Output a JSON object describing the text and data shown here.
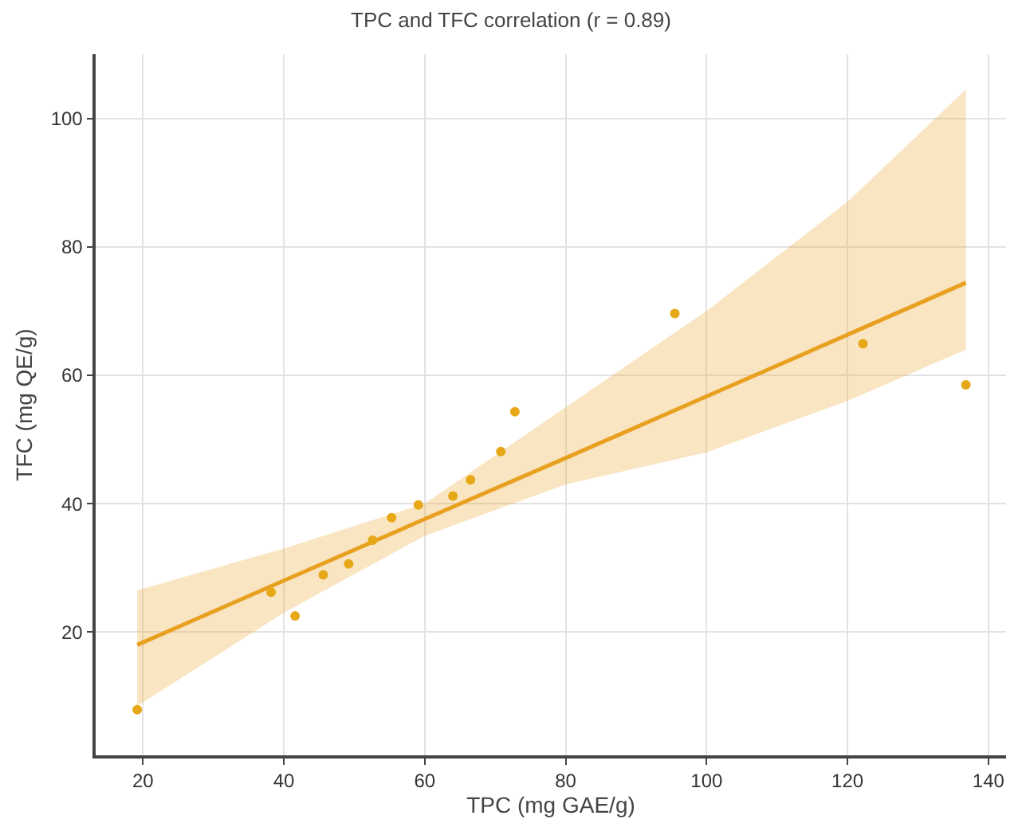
{
  "chart_data": {
    "type": "scatter",
    "title": "TPC and TFC correlation (r = 0.89)",
    "xlabel": "TPC (mg GAE/g)",
    "ylabel": "TFC (mg QE/g)",
    "xlim": [
      13.3,
      142.5
    ],
    "ylim": [
      0.8,
      110
    ],
    "xticks": [
      20,
      40,
      60,
      80,
      100,
      120,
      140
    ],
    "yticks": [
      20,
      40,
      60,
      80,
      100
    ],
    "grid": true,
    "series": [
      {
        "type": "line",
        "color": "#e8a020",
        "marker": "none",
        "line_style": "solid",
        "x": [
          19.2,
          40,
          60,
          80,
          100,
          120,
          136.8
        ],
        "values": [
          18.0,
          28.0,
          37.6,
          47.1,
          56.7,
          66.3,
          74.4
        ],
        "lower": [
          8.5,
          23,
          35,
          43,
          48,
          56,
          64
        ],
        "upper": [
          26.5,
          33,
          40,
          55,
          70,
          87,
          104.5
        ]
      },
      {
        "color": "#e6a817",
        "marker": "circle",
        "x": [
          19.2,
          38.2,
          41.6,
          45.6,
          49.2,
          52.6,
          55.3,
          59.1,
          64,
          66.5,
          70.8,
          72.8,
          95.5,
          122.2,
          136.8
        ],
        "values": [
          7.9,
          26.2,
          22.5,
          28.9,
          30.6,
          34.3,
          37.8,
          39.8,
          41.2,
          43.7,
          48.1,
          54.3,
          69.6,
          64.9,
          58.5
        ]
      }
    ]
  }
}
